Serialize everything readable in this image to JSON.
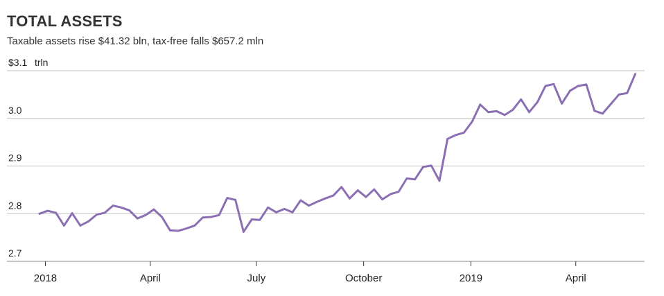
{
  "header": {
    "title": "TOTAL ASSETS",
    "subtitle": "Taxable assets rise $41.32 bln, tax-free falls $657.2 mln"
  },
  "chart_data": {
    "type": "line",
    "title": "TOTAL ASSETS",
    "subtitle": "Taxable assets rise $41.32 bln, tax-free falls $657.2 mln",
    "y_unit": "trln",
    "ylim": [
      2.7,
      3.1
    ],
    "y_ticks": [
      {
        "value": 3.1,
        "label": "$3.1"
      },
      {
        "value": 3.0,
        "label": "3.0"
      },
      {
        "value": 2.9,
        "label": "2.9"
      },
      {
        "value": 2.8,
        "label": "2.8"
      },
      {
        "value": 2.7,
        "label": "2.7"
      }
    ],
    "x_ticks": [
      {
        "date": "2018-01-01",
        "label": "2018"
      },
      {
        "date": "2018-04-01",
        "label": "April"
      },
      {
        "date": "2018-07-01",
        "label": "July"
      },
      {
        "date": "2018-10-01",
        "label": "October"
      },
      {
        "date": "2019-01-01",
        "label": "2019"
      },
      {
        "date": "2019-04-01",
        "label": "April"
      }
    ],
    "xlim": [
      "2017-12-24",
      "2019-05-30"
    ],
    "grid": "horizontal",
    "line_color": "#8b6fb3",
    "series": [
      {
        "points": [
          [
            "2017-12-27",
            2.8
          ],
          [
            "2018-01-03",
            2.806
          ],
          [
            "2018-01-10",
            2.802
          ],
          [
            "2018-01-17",
            2.775
          ],
          [
            "2018-01-24",
            2.801
          ],
          [
            "2018-01-31",
            2.775
          ],
          [
            "2018-02-07",
            2.784
          ],
          [
            "2018-02-14",
            2.798
          ],
          [
            "2018-02-21",
            2.802
          ],
          [
            "2018-02-28",
            2.817
          ],
          [
            "2018-03-07",
            2.813
          ],
          [
            "2018-03-14",
            2.807
          ],
          [
            "2018-03-21",
            2.79
          ],
          [
            "2018-03-28",
            2.797
          ],
          [
            "2018-04-04",
            2.809
          ],
          [
            "2018-04-11",
            2.793
          ],
          [
            "2018-04-18",
            2.765
          ],
          [
            "2018-04-25",
            2.764
          ],
          [
            "2018-05-02",
            2.769
          ],
          [
            "2018-05-09",
            2.775
          ],
          [
            "2018-05-16",
            2.792
          ],
          [
            "2018-05-23",
            2.793
          ],
          [
            "2018-05-30",
            2.797
          ],
          [
            "2018-06-06",
            2.833
          ],
          [
            "2018-06-13",
            2.829
          ],
          [
            "2018-06-20",
            2.762
          ],
          [
            "2018-06-27",
            2.788
          ],
          [
            "2018-07-04",
            2.787
          ],
          [
            "2018-07-11",
            2.813
          ],
          [
            "2018-07-18",
            2.803
          ],
          [
            "2018-07-25",
            2.81
          ],
          [
            "2018-08-01",
            2.803
          ],
          [
            "2018-08-08",
            2.828
          ],
          [
            "2018-08-15",
            2.817
          ],
          [
            "2018-08-22",
            2.825
          ],
          [
            "2018-08-29",
            2.832
          ],
          [
            "2018-09-05",
            2.838
          ],
          [
            "2018-09-12",
            2.856
          ],
          [
            "2018-09-19",
            2.832
          ],
          [
            "2018-09-26",
            2.849
          ],
          [
            "2018-10-03",
            2.835
          ],
          [
            "2018-10-10",
            2.851
          ],
          [
            "2018-10-17",
            2.83
          ],
          [
            "2018-10-24",
            2.841
          ],
          [
            "2018-10-31",
            2.846
          ],
          [
            "2018-11-07",
            2.874
          ],
          [
            "2018-11-14",
            2.872
          ],
          [
            "2018-11-21",
            2.898
          ],
          [
            "2018-11-28",
            2.901
          ],
          [
            "2018-12-05",
            2.869
          ],
          [
            "2018-12-12",
            2.957
          ],
          [
            "2018-12-19",
            2.965
          ],
          [
            "2018-12-26",
            2.97
          ],
          [
            "2019-01-02",
            2.993
          ],
          [
            "2019-01-09",
            3.029
          ],
          [
            "2019-01-16",
            3.013
          ],
          [
            "2019-01-23",
            3.015
          ],
          [
            "2019-01-30",
            3.007
          ],
          [
            "2019-02-06",
            3.018
          ],
          [
            "2019-02-13",
            3.04
          ],
          [
            "2019-02-20",
            3.013
          ],
          [
            "2019-02-27",
            3.034
          ],
          [
            "2019-03-06",
            3.068
          ],
          [
            "2019-03-13",
            3.072
          ],
          [
            "2019-03-20",
            3.031
          ],
          [
            "2019-03-27",
            3.058
          ],
          [
            "2019-04-03",
            3.068
          ],
          [
            "2019-04-10",
            3.071
          ],
          [
            "2019-04-17",
            3.016
          ],
          [
            "2019-04-24",
            3.01
          ],
          [
            "2019-05-01",
            3.03
          ],
          [
            "2019-05-08",
            3.05
          ],
          [
            "2019-05-15",
            3.053
          ],
          [
            "2019-05-22",
            3.093
          ]
        ]
      }
    ]
  }
}
